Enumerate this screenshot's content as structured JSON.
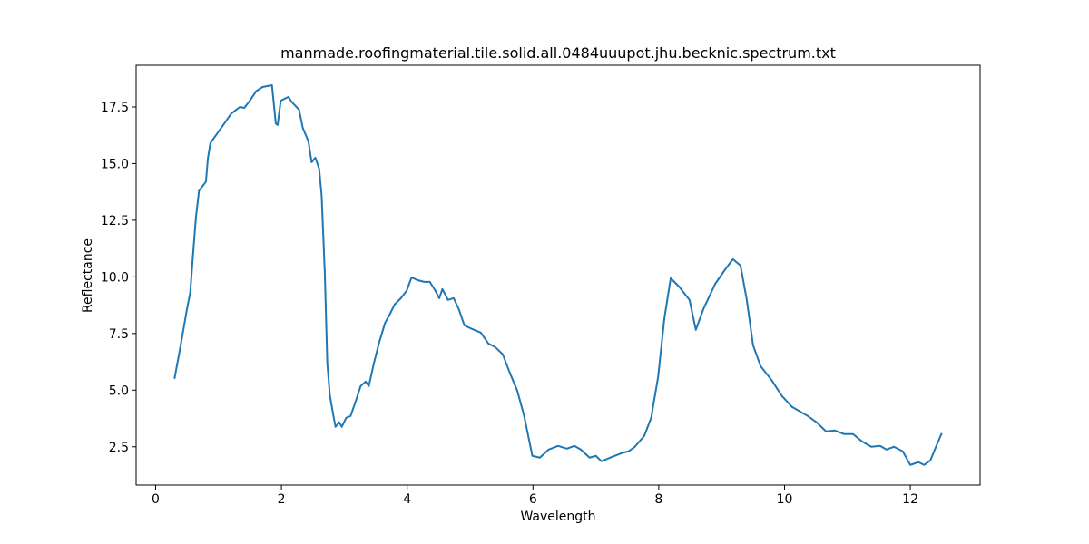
{
  "chart_data": {
    "type": "line",
    "title": "manmade.roofingmaterial.tile.solid.all.0484uuupot.jhu.becknic.spectrum.txt",
    "xlabel": "Wavelength",
    "ylabel": "Reflectance",
    "x": [
      0.3,
      0.4,
      0.5,
      0.55,
      0.59,
      0.64,
      0.69,
      0.8,
      0.83,
      0.87,
      0.92,
      1.05,
      1.2,
      1.34,
      1.41,
      1.5,
      1.6,
      1.7,
      1.85,
      1.91,
      1.94,
      1.99,
      2.11,
      2.17,
      2.28,
      2.34,
      2.43,
      2.48,
      2.54,
      2.6,
      2.64,
      2.69,
      2.73,
      2.77,
      2.82,
      2.86,
      2.92,
      2.96,
      3.03,
      3.1,
      3.19,
      3.26,
      3.34,
      3.39,
      3.47,
      3.55,
      3.65,
      3.73,
      3.8,
      3.9,
      3.99,
      4.07,
      4.16,
      4.27,
      4.36,
      4.45,
      4.51,
      4.56,
      4.65,
      4.74,
      4.82,
      4.91,
      5.03,
      5.17,
      5.29,
      5.4,
      5.52,
      5.63,
      5.75,
      5.86,
      5.99,
      6.11,
      6.25,
      6.4,
      6.54,
      6.66,
      6.76,
      6.9,
      7.0,
      7.09,
      7.26,
      7.41,
      7.52,
      7.62,
      7.77,
      7.88,
      7.99,
      8.09,
      8.19,
      8.32,
      8.49,
      8.59,
      8.71,
      8.9,
      9.07,
      9.18,
      9.3,
      9.4,
      9.5,
      9.62,
      9.79,
      9.96,
      10.12,
      10.22,
      10.37,
      10.51,
      10.66,
      10.8,
      10.95,
      11.09,
      11.23,
      11.38,
      11.52,
      11.62,
      11.74,
      11.88,
      12.0,
      12.13,
      12.22,
      12.32,
      12.39,
      12.5
    ],
    "series": [
      {
        "name": "Reflectance",
        "color": "#1f77b4",
        "values": [
          5.5,
          7.0,
          8.6,
          9.3,
          10.8,
          12.6,
          13.8,
          14.2,
          15.2,
          15.9,
          16.1,
          16.6,
          17.2,
          17.5,
          17.46,
          17.78,
          18.2,
          18.38,
          18.46,
          16.78,
          16.7,
          17.78,
          17.94,
          17.7,
          17.38,
          16.58,
          15.98,
          15.06,
          15.26,
          14.78,
          13.58,
          10.18,
          6.18,
          4.78,
          3.98,
          3.38,
          3.58,
          3.38,
          3.78,
          3.86,
          4.58,
          5.18,
          5.38,
          5.18,
          6.18,
          7.06,
          7.98,
          8.38,
          8.78,
          9.06,
          9.38,
          9.98,
          9.86,
          9.78,
          9.78,
          9.38,
          9.06,
          9.46,
          8.98,
          9.06,
          8.58,
          7.86,
          7.7,
          7.54,
          7.06,
          6.9,
          6.58,
          5.78,
          4.98,
          3.86,
          2.1,
          2.02,
          2.38,
          2.54,
          2.42,
          2.54,
          2.38,
          2.02,
          2.1,
          1.86,
          2.06,
          2.22,
          2.3,
          2.5,
          2.98,
          3.78,
          5.58,
          8.18,
          9.94,
          9.58,
          8.98,
          7.66,
          8.58,
          9.7,
          10.38,
          10.78,
          10.5,
          8.98,
          6.98,
          6.06,
          5.46,
          4.74,
          4.26,
          4.1,
          3.86,
          3.58,
          3.18,
          3.22,
          3.06,
          3.06,
          2.74,
          2.5,
          2.54,
          2.38,
          2.5,
          2.3,
          1.7,
          1.82,
          1.7,
          1.9,
          2.38,
          3.1
        ]
      }
    ],
    "xlim": [
      -0.31,
      13.11
    ],
    "ylim": [
      0.81,
      19.34
    ],
    "xticks": [
      0,
      2,
      4,
      6,
      8,
      10,
      12
    ],
    "yticks": [
      2.5,
      {
        "value": 5,
        "label": "5.0"
      },
      7.5,
      {
        "value": 10,
        "label": "10.0"
      },
      12.5,
      {
        "value": 15,
        "label": "15.0"
      },
      17.5
    ]
  }
}
